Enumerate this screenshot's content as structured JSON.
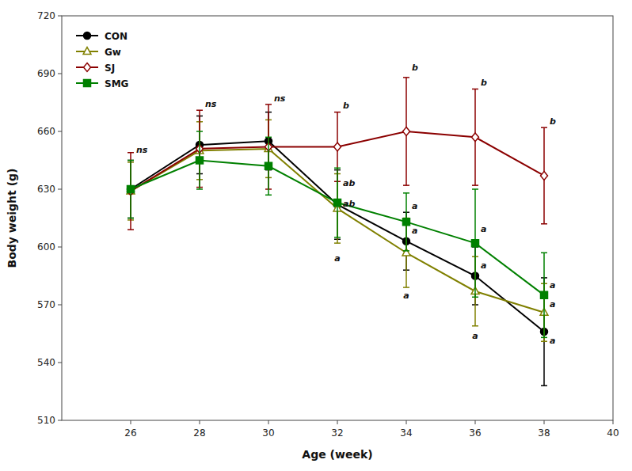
{
  "chart_data": {
    "type": "line",
    "xlabel": "Age (week)",
    "ylabel": "Body weight (g)",
    "x": [
      26,
      28,
      30,
      32,
      34,
      36,
      38
    ],
    "xlim": [
      24,
      40
    ],
    "ylim": [
      510,
      720
    ],
    "xticks": [
      26,
      28,
      30,
      32,
      34,
      36,
      38,
      40
    ],
    "yticks": [
      510,
      540,
      570,
      600,
      630,
      660,
      690,
      720
    ],
    "grid": false,
    "legend": "upper left",
    "series": [
      {
        "name": "CON",
        "color": "#000000",
        "marker": "circle",
        "values": [
          630,
          653,
          655,
          622,
          603,
          585,
          556
        ],
        "yerr": [
          15,
          15,
          15,
          18,
          15,
          15,
          28
        ]
      },
      {
        "name": "Gw",
        "color": "#808000",
        "marker": "open-triangle",
        "values": [
          629,
          650,
          651,
          620,
          597,
          577,
          566
        ],
        "yerr": [
          15,
          15,
          15,
          18,
          18,
          18,
          15
        ]
      },
      {
        "name": "SJ",
        "color": "#8B0000",
        "marker": "open-diamond",
        "values": [
          629,
          651,
          652,
          652,
          660,
          657,
          637
        ],
        "yerr": [
          20,
          20,
          22,
          18,
          28,
          25,
          25
        ]
      },
      {
        "name": "SMG",
        "color": "#008000",
        "marker": "square",
        "values": [
          630,
          645,
          642,
          623,
          613,
          602,
          575
        ],
        "yerr": [
          15,
          15,
          15,
          18,
          15,
          28,
          22
        ]
      }
    ],
    "annotations": [
      {
        "text": "ns",
        "x": 26,
        "y": 648
      },
      {
        "text": "ns",
        "x": 28,
        "y": 672
      },
      {
        "text": "ns",
        "x": 30,
        "y": 675
      },
      {
        "text": "b",
        "x": 32,
        "y": 671
      },
      {
        "text": "ab",
        "x": 32,
        "y": 631
      },
      {
        "text": "ab",
        "x": 32,
        "y": 620
      },
      {
        "text": "a",
        "x": 32,
        "y": 597
      },
      {
        "text": "b",
        "x": 34,
        "y": 691
      },
      {
        "text": "a",
        "x": 34,
        "y": 619
      },
      {
        "text": "a",
        "x": 34,
        "y": 606
      },
      {
        "text": "a",
        "x": 34,
        "y": 578
      },
      {
        "text": "b",
        "x": 36,
        "y": 683
      },
      {
        "text": "a",
        "x": 36,
        "y": 607
      },
      {
        "text": "a",
        "x": 36,
        "y": 588
      },
      {
        "text": "a",
        "x": 36,
        "y": 557
      },
      {
        "text": "b",
        "x": 38,
        "y": 663
      },
      {
        "text": "a",
        "x": 38,
        "y": 578
      },
      {
        "text": "a",
        "x": 38,
        "y": 568
      },
      {
        "text": "a",
        "x": 38,
        "y": 549
      }
    ]
  }
}
